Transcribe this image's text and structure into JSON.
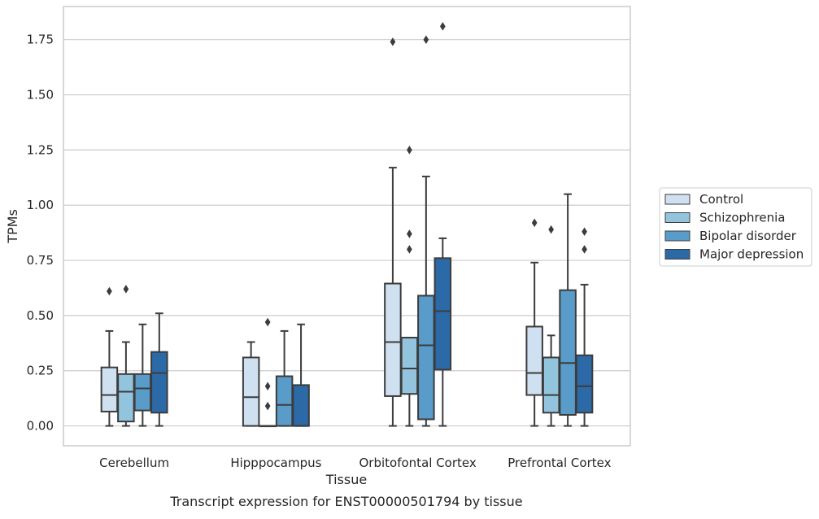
{
  "caption": "Transcript expression for ENST00000501794 by tissue",
  "chart_data": {
    "type": "box",
    "xlabel": "Tissue",
    "ylabel": "TPMs",
    "ylim": [
      -0.09,
      1.9
    ],
    "yticks": [
      0.0,
      0.25,
      0.5,
      0.75,
      1.0,
      1.25,
      1.5,
      1.75
    ],
    "ytick_labels": [
      "0.00",
      "0.25",
      "0.50",
      "0.75",
      "1.00",
      "1.25",
      "1.50",
      "1.75"
    ],
    "grid": "horizontal",
    "legend_position": "right",
    "categories": [
      "Cerebellum",
      "Hipppocampus",
      "Orbitofontal Cortex",
      "Prefrontal Cortex"
    ],
    "series": [
      {
        "name": "Control",
        "color": "#cfe0f1",
        "boxes": [
          {
            "whislo": 0.0,
            "q1": 0.065,
            "med": 0.14,
            "q3": 0.265,
            "whishi": 0.43,
            "fliers": [
              0.61
            ]
          },
          {
            "whislo": 0.0,
            "q1": 0.0,
            "med": 0.13,
            "q3": 0.31,
            "whishi": 0.38,
            "fliers": []
          },
          {
            "whislo": 0.0,
            "q1": 0.135,
            "med": 0.38,
            "q3": 0.645,
            "whishi": 1.17,
            "fliers": [
              1.74
            ]
          },
          {
            "whislo": 0.0,
            "q1": 0.14,
            "med": 0.24,
            "q3": 0.45,
            "whishi": 0.74,
            "fliers": [
              0.92
            ]
          }
        ]
      },
      {
        "name": "Schizophrenia",
        "color": "#93c4de",
        "boxes": [
          {
            "whislo": 0.0,
            "q1": 0.02,
            "med": 0.155,
            "q3": 0.235,
            "whishi": 0.38,
            "fliers": [
              0.62
            ]
          },
          {
            "whislo": 0.0,
            "q1": 0.0,
            "med": 0.0,
            "q3": 0.0,
            "whishi": 0.0,
            "fliers": [
              0.09,
              0.18,
              0.47
            ]
          },
          {
            "whislo": 0.0,
            "q1": 0.145,
            "med": 0.26,
            "q3": 0.4,
            "whishi": 0.4,
            "fliers": [
              0.8,
              0.87,
              1.25
            ]
          },
          {
            "whislo": 0.0,
            "q1": 0.06,
            "med": 0.14,
            "q3": 0.31,
            "whishi": 0.41,
            "fliers": [
              0.89
            ]
          }
        ]
      },
      {
        "name": "Bipolar disorder",
        "color": "#5a9cc9",
        "boxes": [
          {
            "whislo": 0.0,
            "q1": 0.07,
            "med": 0.17,
            "q3": 0.235,
            "whishi": 0.46,
            "fliers": []
          },
          {
            "whislo": 0.0,
            "q1": 0.0,
            "med": 0.095,
            "q3": 0.225,
            "whishi": 0.43,
            "fliers": []
          },
          {
            "whislo": 0.0,
            "q1": 0.03,
            "med": 0.365,
            "q3": 0.59,
            "whishi": 1.13,
            "fliers": [
              1.75
            ]
          },
          {
            "whislo": 0.0,
            "q1": 0.05,
            "med": 0.285,
            "q3": 0.615,
            "whishi": 1.05,
            "fliers": []
          }
        ]
      },
      {
        "name": "Major depression",
        "color": "#2c6aa7",
        "boxes": [
          {
            "whislo": 0.0,
            "q1": 0.06,
            "med": 0.24,
            "q3": 0.335,
            "whishi": 0.51,
            "fliers": []
          },
          {
            "whislo": 0.0,
            "q1": 0.0,
            "med": 0.0,
            "q3": 0.185,
            "whishi": 0.46,
            "fliers": []
          },
          {
            "whislo": 0.0,
            "q1": 0.255,
            "med": 0.52,
            "q3": 0.76,
            "whishi": 0.85,
            "fliers": [
              1.81
            ]
          },
          {
            "whislo": 0.0,
            "q1": 0.06,
            "med": 0.18,
            "q3": 0.32,
            "whishi": 0.64,
            "fliers": [
              0.8,
              0.88
            ]
          }
        ]
      }
    ]
  }
}
